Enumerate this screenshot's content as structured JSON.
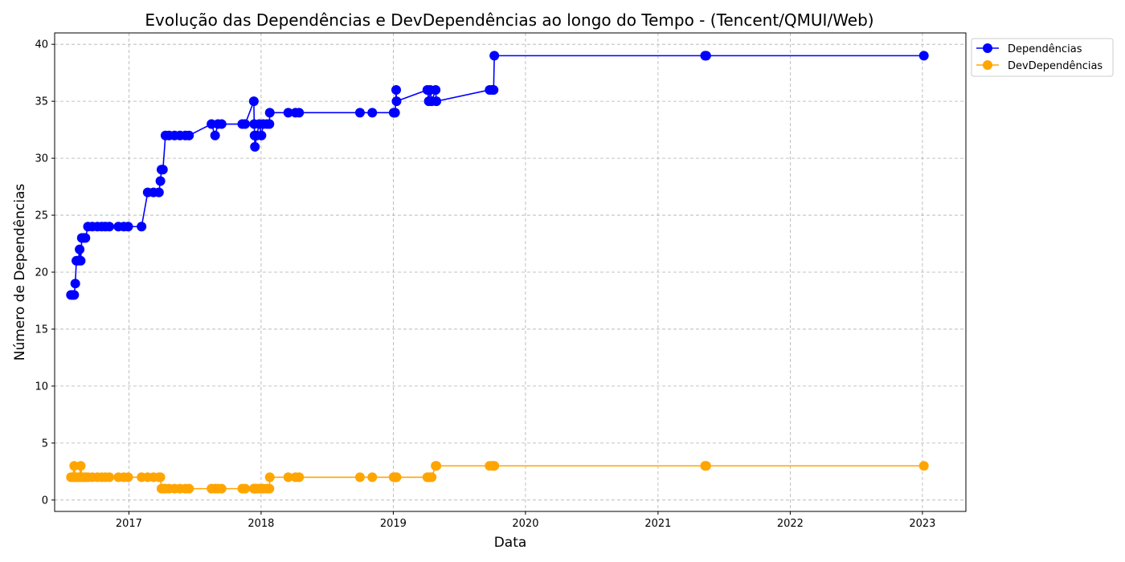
{
  "chart_data": {
    "type": "line",
    "title": "Evolução das Dependências e DevDependências ao longo do Tempo - (Tencent/QMUI/Web)",
    "xlabel": "Data",
    "ylabel": "Número de Dependências",
    "xlim": [
      "2016-06-10",
      "2023-05-01"
    ],
    "ylim": [
      -1,
      41
    ],
    "x_ticks": [
      "2017",
      "2018",
      "2019",
      "2020",
      "2021",
      "2022",
      "2023"
    ],
    "y_ticks": [
      0,
      5,
      10,
      15,
      20,
      25,
      30,
      35,
      40
    ],
    "grid": true,
    "legend_position": "upper-right-outside",
    "series": [
      {
        "name": "Dependências",
        "color": "#0000ff",
        "points": [
          [
            "2016-07-25",
            18
          ],
          [
            "2016-07-30",
            18
          ],
          [
            "2016-08-03",
            18
          ],
          [
            "2016-08-06",
            19
          ],
          [
            "2016-08-09",
            21
          ],
          [
            "2016-08-14",
            21
          ],
          [
            "2016-08-18",
            22
          ],
          [
            "2016-08-21",
            21
          ],
          [
            "2016-08-24",
            23
          ],
          [
            "2016-08-30",
            23
          ],
          [
            "2016-09-03",
            23
          ],
          [
            "2016-09-10",
            24
          ],
          [
            "2016-09-22",
            24
          ],
          [
            "2016-10-06",
            24
          ],
          [
            "2016-10-18",
            24
          ],
          [
            "2016-10-28",
            24
          ],
          [
            "2016-11-08",
            24
          ],
          [
            "2016-12-03",
            24
          ],
          [
            "2016-12-18",
            24
          ],
          [
            "2016-12-30",
            24
          ],
          [
            "2017-02-05",
            24
          ],
          [
            "2017-02-22",
            27
          ],
          [
            "2017-03-10",
            27
          ],
          [
            "2017-03-25",
            27
          ],
          [
            "2017-03-29",
            28
          ],
          [
            "2017-04-01",
            29
          ],
          [
            "2017-04-05",
            29
          ],
          [
            "2017-04-12",
            32
          ],
          [
            "2017-04-22",
            32
          ],
          [
            "2017-05-07",
            32
          ],
          [
            "2017-05-22",
            32
          ],
          [
            "2017-06-06",
            32
          ],
          [
            "2017-06-16",
            32
          ],
          [
            "2017-08-17",
            33
          ],
          [
            "2017-08-27",
            32
          ],
          [
            "2017-09-04",
            33
          ],
          [
            "2017-09-14",
            33
          ],
          [
            "2017-11-10",
            33
          ],
          [
            "2017-11-18",
            33
          ],
          [
            "2017-12-12",
            35
          ],
          [
            "2017-12-13",
            33
          ],
          [
            "2017-12-14",
            32
          ],
          [
            "2017-12-15",
            31
          ],
          [
            "2017-12-20",
            32
          ],
          [
            "2017-12-27",
            33
          ],
          [
            "2018-01-02",
            32
          ],
          [
            "2018-01-07",
            33
          ],
          [
            "2018-01-17",
            33
          ],
          [
            "2018-01-24",
            33
          ],
          [
            "2018-01-25",
            34
          ],
          [
            "2018-03-17",
            34
          ],
          [
            "2018-04-06",
            34
          ],
          [
            "2018-04-16",
            34
          ],
          [
            "2018-10-01",
            34
          ],
          [
            "2018-11-04",
            34
          ],
          [
            "2019-01-02",
            34
          ],
          [
            "2019-01-06",
            34
          ],
          [
            "2019-01-09",
            36
          ],
          [
            "2019-01-10",
            35
          ],
          [
            "2019-04-05",
            36
          ],
          [
            "2019-04-09",
            35
          ],
          [
            "2019-04-13",
            36
          ],
          [
            "2019-04-17",
            35
          ],
          [
            "2019-04-28",
            36
          ],
          [
            "2019-04-30",
            35
          ],
          [
            "2019-09-24",
            36
          ],
          [
            "2019-10-01",
            36
          ],
          [
            "2019-10-05",
            36
          ],
          [
            "2019-10-07",
            39
          ],
          [
            "2021-05-11",
            39
          ],
          [
            "2021-05-14",
            39
          ],
          [
            "2023-01-05",
            39
          ]
        ]
      },
      {
        "name": "DevDependências",
        "color": "#ffa500",
        "points": [
          [
            "2016-07-25",
            2
          ],
          [
            "2016-07-30",
            2
          ],
          [
            "2016-08-03",
            3
          ],
          [
            "2016-08-06",
            2
          ],
          [
            "2016-08-09",
            2
          ],
          [
            "2016-08-14",
            2
          ],
          [
            "2016-08-18",
            2
          ],
          [
            "2016-08-21",
            3
          ],
          [
            "2016-08-24",
            2
          ],
          [
            "2016-08-30",
            2
          ],
          [
            "2016-09-03",
            2
          ],
          [
            "2016-09-10",
            2
          ],
          [
            "2016-09-22",
            2
          ],
          [
            "2016-10-06",
            2
          ],
          [
            "2016-10-18",
            2
          ],
          [
            "2016-10-28",
            2
          ],
          [
            "2016-11-08",
            2
          ],
          [
            "2016-12-03",
            2
          ],
          [
            "2016-12-18",
            2
          ],
          [
            "2016-12-30",
            2
          ],
          [
            "2017-02-05",
            2
          ],
          [
            "2017-02-22",
            2
          ],
          [
            "2017-03-10",
            2
          ],
          [
            "2017-03-25",
            2
          ],
          [
            "2017-03-29",
            2
          ],
          [
            "2017-04-01",
            1
          ],
          [
            "2017-04-05",
            1
          ],
          [
            "2017-04-12",
            1
          ],
          [
            "2017-04-22",
            1
          ],
          [
            "2017-05-07",
            1
          ],
          [
            "2017-05-22",
            1
          ],
          [
            "2017-06-06",
            1
          ],
          [
            "2017-06-16",
            1
          ],
          [
            "2017-08-17",
            1
          ],
          [
            "2017-08-27",
            1
          ],
          [
            "2017-09-04",
            1
          ],
          [
            "2017-09-14",
            1
          ],
          [
            "2017-11-10",
            1
          ],
          [
            "2017-11-18",
            1
          ],
          [
            "2017-12-12",
            1
          ],
          [
            "2017-12-13",
            1
          ],
          [
            "2017-12-14",
            1
          ],
          [
            "2017-12-15",
            1
          ],
          [
            "2017-12-20",
            1
          ],
          [
            "2017-12-27",
            1
          ],
          [
            "2018-01-02",
            1
          ],
          [
            "2018-01-07",
            1
          ],
          [
            "2018-01-17",
            1
          ],
          [
            "2018-01-24",
            1
          ],
          [
            "2018-01-25",
            2
          ],
          [
            "2018-03-17",
            2
          ],
          [
            "2018-04-06",
            2
          ],
          [
            "2018-04-16",
            2
          ],
          [
            "2018-10-01",
            2
          ],
          [
            "2018-11-04",
            2
          ],
          [
            "2019-01-02",
            2
          ],
          [
            "2019-01-06",
            2
          ],
          [
            "2019-01-09",
            2
          ],
          [
            "2019-01-10",
            2
          ],
          [
            "2019-04-05",
            2
          ],
          [
            "2019-04-09",
            2
          ],
          [
            "2019-04-13",
            2
          ],
          [
            "2019-04-17",
            2
          ],
          [
            "2019-04-28",
            3
          ],
          [
            "2019-04-30",
            3
          ],
          [
            "2019-09-24",
            3
          ],
          [
            "2019-10-01",
            3
          ],
          [
            "2019-10-05",
            3
          ],
          [
            "2019-10-07",
            3
          ],
          [
            "2021-05-11",
            3
          ],
          [
            "2021-05-14",
            3
          ],
          [
            "2023-01-05",
            3
          ]
        ]
      }
    ]
  }
}
